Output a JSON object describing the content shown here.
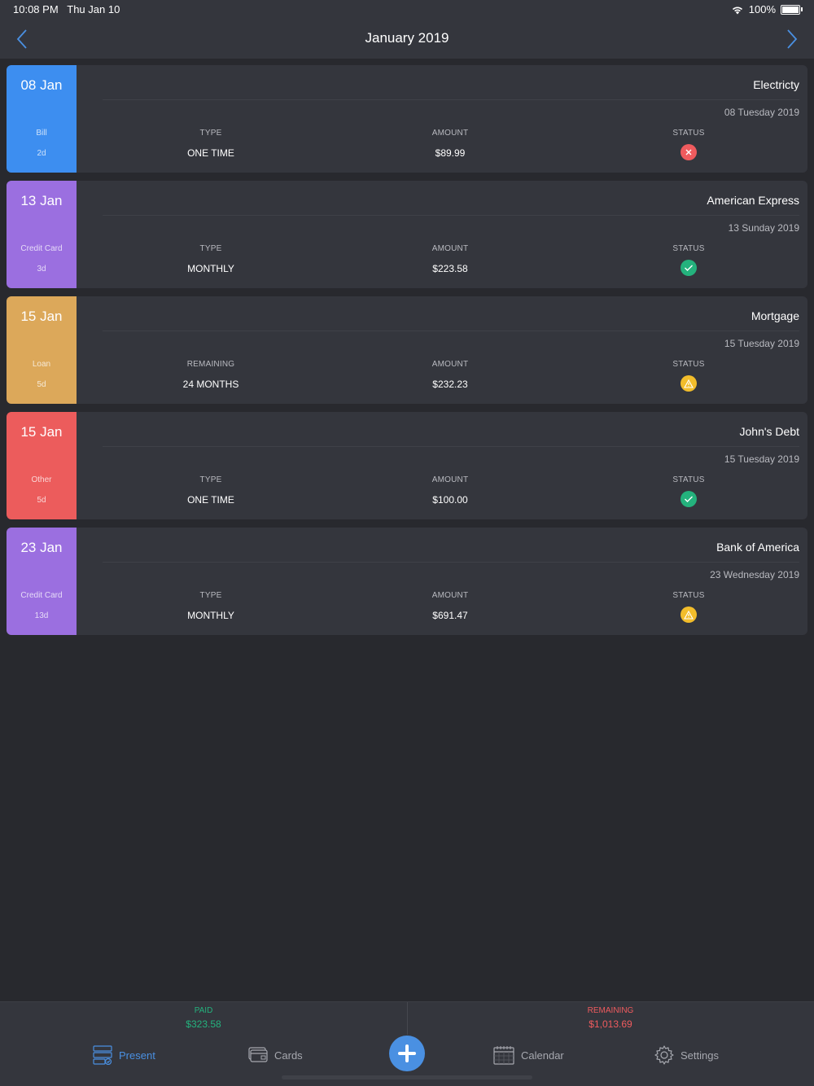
{
  "status_bar": {
    "time": "10:08 PM",
    "date": "Thu Jan 10",
    "battery": "100%"
  },
  "header": {
    "title": "January 2019",
    "prev_icon": "chevron-left-icon",
    "next_icon": "chevron-right-icon"
  },
  "bills": [
    {
      "date": "08 Jan",
      "category": "Bill",
      "days": "2d",
      "color": "#3d8ef0",
      "name": "Electricty",
      "subtitle": "08 Tuesday 2019",
      "col1_label": "TYPE",
      "col1_value": "ONE TIME",
      "amount_label": "AMOUNT",
      "amount": "$89.99",
      "status_label": "STATUS",
      "status": "fail"
    },
    {
      "date": "13 Jan",
      "category": "Credit Card",
      "days": "3d",
      "color": "#9b6fe0",
      "name": "American Express",
      "subtitle": "13 Sunday 2019",
      "col1_label": "TYPE",
      "col1_value": "MONTHLY",
      "amount_label": "AMOUNT",
      "amount": "$223.58",
      "status_label": "STATUS",
      "status": "ok"
    },
    {
      "date": "15 Jan",
      "category": "Loan",
      "days": "5d",
      "color": "#dca85a",
      "name": "Mortgage",
      "subtitle": "15 Tuesday 2019",
      "col1_label": "REMAINING",
      "col1_value": "24 MONTHS",
      "amount_label": "AMOUNT",
      "amount": "$232.23",
      "status_label": "STATUS",
      "status": "warn"
    },
    {
      "date": "15 Jan",
      "category": "Other",
      "days": "5d",
      "color": "#ec5c5c",
      "name": "John's Debt",
      "subtitle": "15 Tuesday 2019",
      "col1_label": "TYPE",
      "col1_value": "ONE TIME",
      "amount_label": "AMOUNT",
      "amount": "$100.00",
      "status_label": "STATUS",
      "status": "ok"
    },
    {
      "date": "23 Jan",
      "category": "Credit Card",
      "days": "13d",
      "color": "#9b6fe0",
      "name": "Bank of America",
      "subtitle": "23 Wednesday 2019",
      "col1_label": "TYPE",
      "col1_value": "MONTHLY",
      "amount_label": "AMOUNT",
      "amount": "$691.47",
      "status_label": "STATUS",
      "status": "warn"
    }
  ],
  "summary": {
    "paid_label": "PAID",
    "paid_amount": "$323.58",
    "remaining_label": "REMAINING",
    "remaining_amount": "$1,013.69"
  },
  "tabs": [
    {
      "label": "Present",
      "icon": "present-icon",
      "active": true
    },
    {
      "label": "Cards",
      "icon": "cards-icon",
      "active": false
    },
    {
      "label": "",
      "icon": "plus-icon",
      "active": false
    },
    {
      "label": "Calendar",
      "icon": "calendar-icon",
      "active": false
    },
    {
      "label": "Settings",
      "icon": "gear-icon",
      "active": false
    }
  ],
  "colors": {
    "accent": "#4a90e2",
    "paid": "#24b27d",
    "remaining": "#ef5b5e",
    "warn": "#f2bd2b"
  }
}
